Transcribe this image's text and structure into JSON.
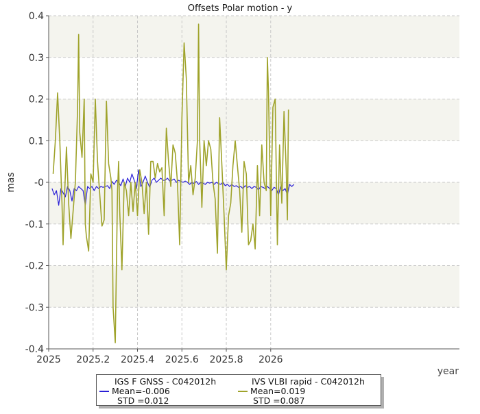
{
  "chart_data": {
    "type": "line",
    "title": "Offsets Polar motion - y",
    "xlabel": "year",
    "ylabel": "mas",
    "xlim": [
      2025.0,
      2026.85
    ],
    "ylim": [
      -0.4,
      0.4
    ],
    "x_ticks": [
      2025,
      2025.2,
      2025.4,
      2025.6,
      2025.8,
      2026
    ],
    "x_tick_labels": [
      "2025",
      "2025.2",
      "2025.4",
      "2025.6",
      "2025.8",
      "2026"
    ],
    "y_ticks": [
      -0.4,
      -0.3,
      -0.2,
      -0.1,
      0,
      0.1,
      0.2,
      0.3,
      0.4
    ],
    "y_tick_labels": [
      "-0.4",
      "-0.3",
      "-0.2",
      "-0.1",
      "-0",
      "0.1",
      "0.2",
      "0.3",
      "0.4"
    ],
    "grid": true,
    "background_bands": true,
    "legend_position": "bottom",
    "series": [
      {
        "name": "IGS F GNSS - C042012h",
        "mean_label": "Mean=-0.006",
        "std_label": "STD =0.012",
        "color": "#2a1fd6",
        "x": [
          2025.015,
          2025.025,
          2025.035,
          2025.045,
          2025.055,
          2025.065,
          2025.075,
          2025.085,
          2025.095,
          2025.105,
          2025.115,
          2025.125,
          2025.135,
          2025.145,
          2025.155,
          2025.165,
          2025.175,
          2025.185,
          2025.195,
          2025.205,
          2025.215,
          2025.225,
          2025.235,
          2025.245,
          2025.255,
          2025.265,
          2025.275,
          2025.285,
          2025.295,
          2025.305,
          2025.315,
          2025.325,
          2025.335,
          2025.345,
          2025.355,
          2025.365,
          2025.375,
          2025.385,
          2025.395,
          2025.405,
          2025.415,
          2025.425,
          2025.435,
          2025.445,
          2025.455,
          2025.465,
          2025.475,
          2025.485,
          2025.495,
          2025.505,
          2025.515,
          2025.525,
          2025.535,
          2025.545,
          2025.555,
          2025.565,
          2025.575,
          2025.585,
          2025.595,
          2025.605,
          2025.615,
          2025.625,
          2025.635,
          2025.645,
          2025.655,
          2025.665,
          2025.675,
          2025.685,
          2025.695,
          2025.705,
          2025.715,
          2025.725,
          2025.735,
          2025.745,
          2025.755,
          2025.765,
          2025.775,
          2025.785,
          2025.795,
          2025.805,
          2025.815,
          2025.825,
          2025.835,
          2025.845,
          2025.855,
          2025.865,
          2025.875,
          2025.885,
          2025.895,
          2025.905,
          2025.915,
          2025.925,
          2025.935,
          2025.945,
          2025.955,
          2025.965,
          2025.975,
          2025.985,
          2025.995,
          2026.005,
          2026.015,
          2026.025,
          2026.035,
          2026.045,
          2026.055,
          2026.065,
          2026.075,
          2026.085,
          2026.095,
          2026.105
        ],
        "y": [
          -0.015,
          -0.03,
          -0.02,
          -0.055,
          -0.015,
          -0.025,
          -0.035,
          -0.01,
          -0.02,
          -0.045,
          -0.015,
          -0.02,
          -0.01,
          -0.015,
          -0.02,
          -0.055,
          -0.01,
          -0.015,
          -0.01,
          -0.02,
          -0.01,
          -0.015,
          -0.01,
          -0.012,
          -0.01,
          -0.008,
          -0.015,
          0.002,
          -0.005,
          0.005,
          0.0,
          -0.008,
          0.008,
          -0.01,
          0.01,
          0.0,
          0.02,
          0.005,
          -0.015,
          0.03,
          -0.01,
          0.0,
          0.015,
          0.0,
          -0.012,
          0.005,
          0.01,
          0.0,
          0.005,
          0.01,
          0.005,
          0.005,
          0.01,
          0.003,
          0.005,
          0.008,
          0.0,
          0.005,
          0.002,
          0.0,
          0.003,
          0.0,
          -0.005,
          0.0,
          -0.003,
          0.002,
          -0.005,
          0.0,
          -0.002,
          -0.005,
          0.0,
          -0.002,
          0.0,
          -0.005,
          0.0,
          -0.003,
          -0.005,
          0.0,
          -0.008,
          -0.005,
          -0.01,
          -0.005,
          -0.01,
          -0.008,
          -0.012,
          -0.01,
          -0.015,
          -0.008,
          -0.012,
          -0.01,
          -0.015,
          -0.01,
          -0.012,
          -0.018,
          -0.01,
          -0.012,
          -0.015,
          -0.01,
          -0.015,
          -0.02,
          -0.012,
          -0.015,
          -0.03,
          -0.01,
          -0.02,
          -0.015,
          -0.03,
          -0.005,
          -0.01,
          -0.005
        ]
      },
      {
        "name": "IVS VLBI rapid - C042012h",
        "mean_label": "Mean=0.019",
        "std_label": "STD =0.087",
        "color": "#9fa32b",
        "x": [
          2025.02,
          2025.03,
          2025.04,
          2025.05,
          2025.06,
          2025.065,
          2025.07,
          2025.08,
          2025.09,
          2025.1,
          2025.11,
          2025.12,
          2025.13,
          2025.135,
          2025.14,
          2025.15,
          2025.16,
          2025.165,
          2025.17,
          2025.18,
          2025.19,
          2025.2,
          2025.21,
          2025.22,
          2025.23,
          2025.24,
          2025.25,
          2025.26,
          2025.27,
          2025.28,
          2025.285,
          2025.29,
          2025.3,
          2025.31,
          2025.315,
          2025.32,
          2025.33,
          2025.34,
          2025.35,
          2025.36,
          2025.37,
          2025.38,
          2025.39,
          2025.4,
          2025.41,
          2025.42,
          2025.43,
          2025.44,
          2025.45,
          2025.46,
          2025.47,
          2025.48,
          2025.49,
          2025.5,
          2025.51,
          2025.52,
          2025.53,
          2025.54,
          2025.55,
          2025.56,
          2025.57,
          2025.58,
          2025.59,
          2025.6,
          2025.61,
          2025.62,
          2025.63,
          2025.64,
          2025.65,
          2025.66,
          2025.67,
          2025.675,
          2025.68,
          2025.69,
          2025.7,
          2025.71,
          2025.72,
          2025.73,
          2025.74,
          2025.75,
          2025.76,
          2025.77,
          2025.78,
          2025.79,
          2025.8,
          2025.81,
          2025.82,
          2025.83,
          2025.84,
          2025.85,
          2025.86,
          2025.87,
          2025.88,
          2025.89,
          2025.9,
          2025.91,
          2025.92,
          2025.93,
          2025.94,
          2025.95,
          2025.96,
          2025.97,
          2025.98,
          2025.985,
          2025.99,
          2026.0,
          2026.01,
          2026.02,
          2026.03,
          2026.04,
          2026.05,
          2026.06,
          2026.07,
          2026.075,
          2026.08
        ],
        "y": [
          0.02,
          0.1,
          0.215,
          0.1,
          -0.05,
          -0.15,
          -0.05,
          0.085,
          -0.05,
          -0.135,
          -0.07,
          0.0,
          0.175,
          0.355,
          0.12,
          0.06,
          0.2,
          -0.1,
          -0.13,
          -0.165,
          0.02,
          0.0,
          0.2,
          0.05,
          -0.03,
          -0.105,
          -0.09,
          0.195,
          0.045,
          0.01,
          -0.02,
          -0.3,
          -0.385,
          -0.02,
          0.05,
          -0.07,
          -0.21,
          0.0,
          -0.02,
          -0.08,
          0.0,
          -0.07,
          0.0,
          -0.08,
          0.03,
          0.0,
          -0.075,
          0.0,
          -0.125,
          0.05,
          0.05,
          0.01,
          0.045,
          0.025,
          0.035,
          -0.08,
          0.13,
          0.05,
          -0.01,
          0.09,
          0.07,
          0.0,
          -0.15,
          0.155,
          0.335,
          0.25,
          0.0,
          0.04,
          -0.03,
          0.01,
          0.1,
          0.38,
          0.1,
          -0.06,
          0.1,
          0.04,
          0.1,
          0.08,
          0.0,
          -0.04,
          -0.17,
          0.155,
          0.04,
          -0.08,
          -0.21,
          -0.08,
          -0.05,
          0.04,
          0.1,
          0.04,
          -0.02,
          -0.12,
          0.05,
          0.02,
          -0.15,
          -0.14,
          -0.1,
          -0.16,
          0.04,
          -0.08,
          0.09,
          0.0,
          -0.02,
          0.3,
          0.22,
          -0.08,
          0.18,
          0.2,
          -0.15,
          0.09,
          -0.05,
          0.17,
          0.03,
          -0.09,
          0.175
        ]
      }
    ]
  }
}
